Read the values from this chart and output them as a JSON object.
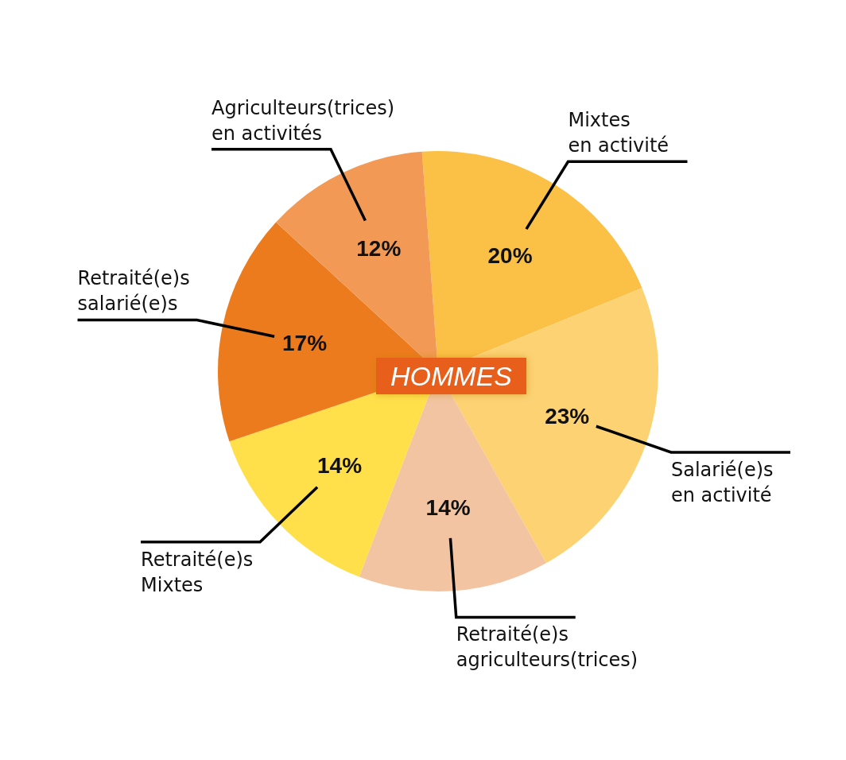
{
  "chart_data": {
    "type": "pie",
    "title": "HOMMES",
    "categories": [
      "Mixtes en activité",
      "Salarié(e)s en activité",
      "Retraité(e)s agriculteurs(trices)",
      "Retraité(e)s Mixtes",
      "Retraité(e)s salarié(e)s",
      "Agriculteurs(trices) en activités"
    ],
    "values": [
      20,
      23,
      14,
      14,
      17,
      12
    ],
    "value_labels": [
      "20%",
      "23%",
      "14%",
      "14%",
      "17%",
      "12%"
    ],
    "colors": [
      "#fbc046",
      "#fcd273",
      "#f2c4a2",
      "#ffe04b",
      "#ec7b1d",
      "#f29a55"
    ]
  }
}
